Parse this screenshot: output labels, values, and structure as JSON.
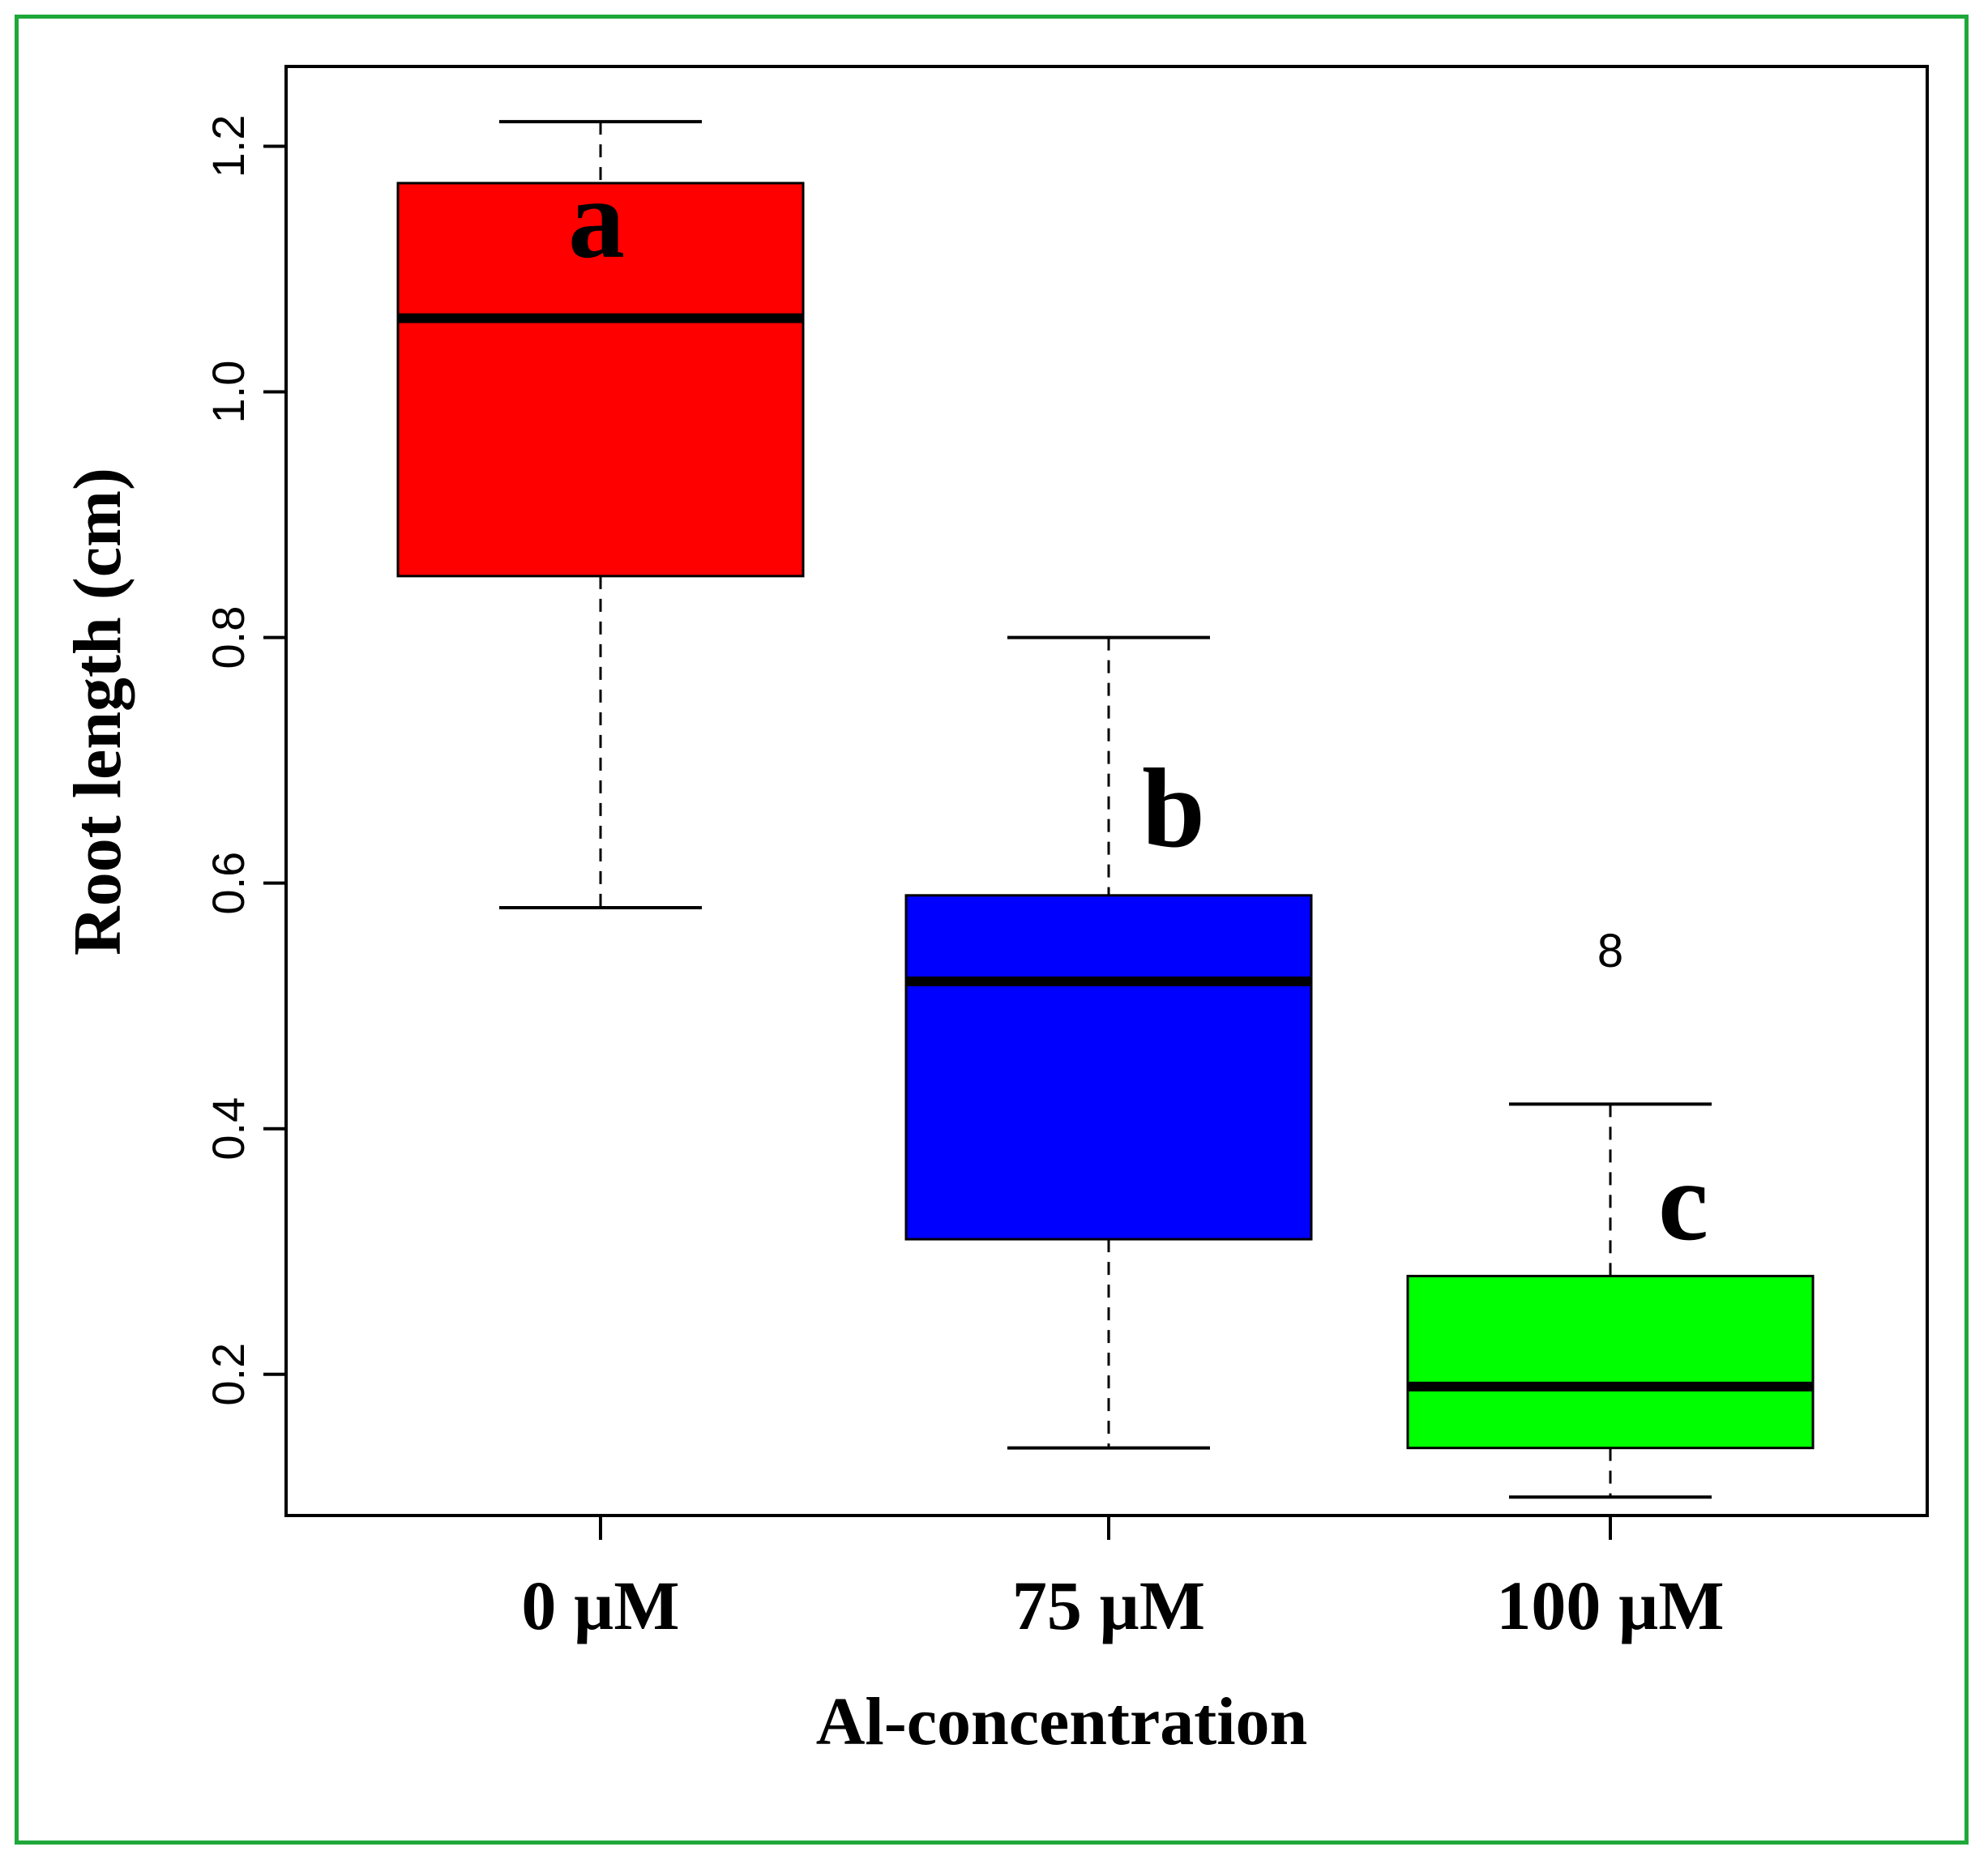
{
  "chart_data": {
    "type": "boxplot",
    "xlabel": "Al-concentration",
    "ylabel": "Root length (cm)",
    "ylim": [
      0.085,
      1.265
    ],
    "yticks": [
      0.2,
      0.4,
      0.6,
      0.8,
      1.0,
      1.2
    ],
    "ytick_labels": [
      "0.2",
      "0.4",
      "0.6",
      "0.8",
      "1.0",
      "1.2"
    ],
    "grid": false,
    "categories": [
      "0 µM",
      "75 µM",
      "100 µM"
    ],
    "boxes": [
      {
        "category": "0 µM",
        "whisker_low": 0.58,
        "q1": 0.85,
        "median": 1.06,
        "q3": 1.17,
        "whisker_high": 1.22,
        "color": "#ff0000",
        "letter": "a",
        "outliers": []
      },
      {
        "category": "75 µM",
        "whisker_low": 0.14,
        "q1": 0.31,
        "median": 0.52,
        "q3": 0.59,
        "whisker_high": 0.8,
        "color": "#0000ff",
        "letter": "b",
        "outliers": []
      },
      {
        "category": "100 µM",
        "whisker_low": 0.1,
        "q1": 0.14,
        "median": 0.19,
        "q3": 0.28,
        "whisker_high": 0.42,
        "color": "#00ff00",
        "letter": "c",
        "outliers": [
          {
            "value": 0.545,
            "symbol": "8"
          }
        ]
      }
    ]
  },
  "colors": {
    "frame_border": "#1fa83a"
  }
}
